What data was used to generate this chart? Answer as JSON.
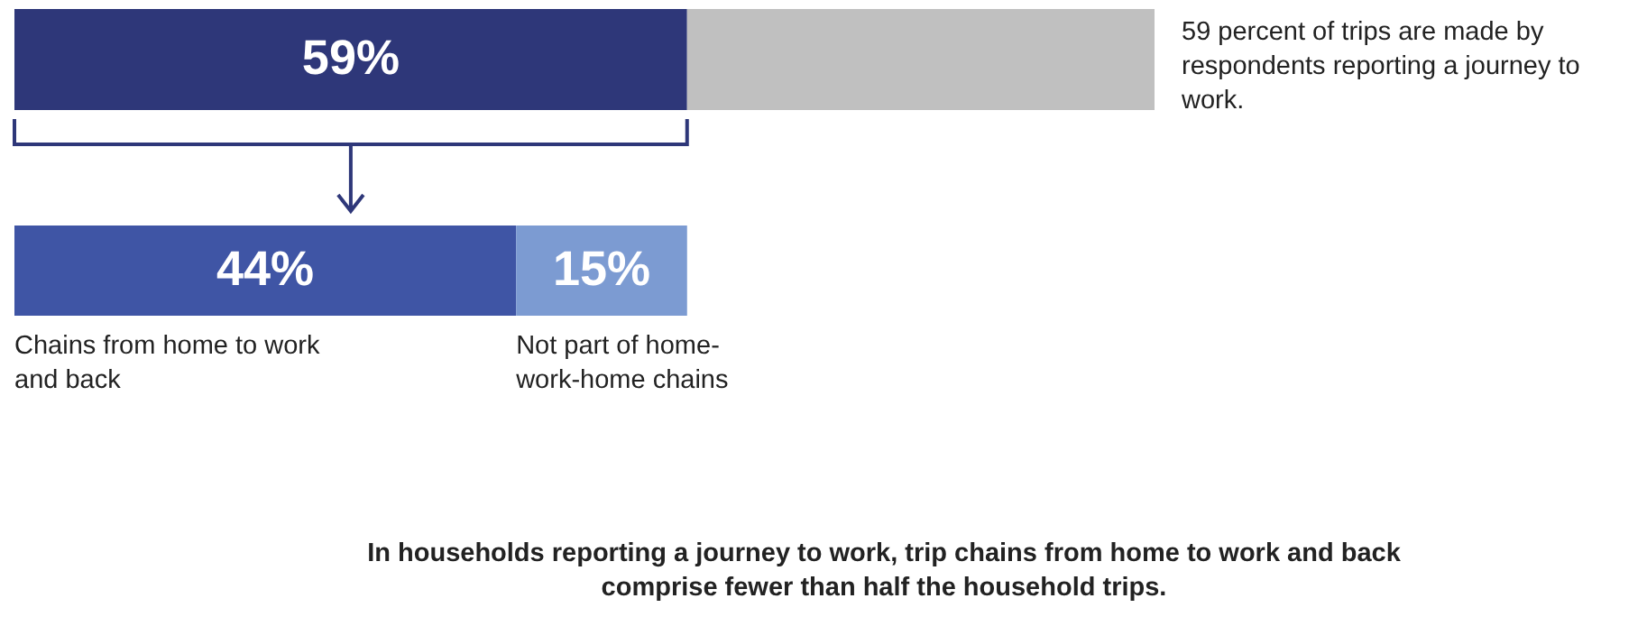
{
  "chart_data": [
    {
      "type": "bar",
      "orientation": "horizontal",
      "stacked": true,
      "categories": [
        null
      ],
      "tick_labels": false,
      "series": [
        {
          "color": "#2e3779",
          "values": [
            59
          ],
          "value_labels": [
            "59%"
          ]
        },
        {
          "color": "#c0c0c0",
          "values": [
            41
          ]
        }
      ],
      "annotations": [
        "59 percent of trips are made by respondents reporting a journey to work."
      ]
    },
    {
      "type": "bar",
      "orientation": "horizontal",
      "stacked": true,
      "categories": [
        null
      ],
      "tick_labels": false,
      "series": [
        {
          "color": "#3f55a5",
          "values": [
            44
          ],
          "value_labels": [
            "44%"
          ]
        },
        {
          "color": "#7c9bd2",
          "values": [
            15
          ],
          "value_labels": [
            "15%"
          ]
        }
      ],
      "annotations": [
        "Chains from home to work and back",
        "Not part of home-work-home chains",
        "In households reporting a journey to work, trip chains from home to work and back comprise fewer than half the household trips."
      ]
    }
  ]
}
